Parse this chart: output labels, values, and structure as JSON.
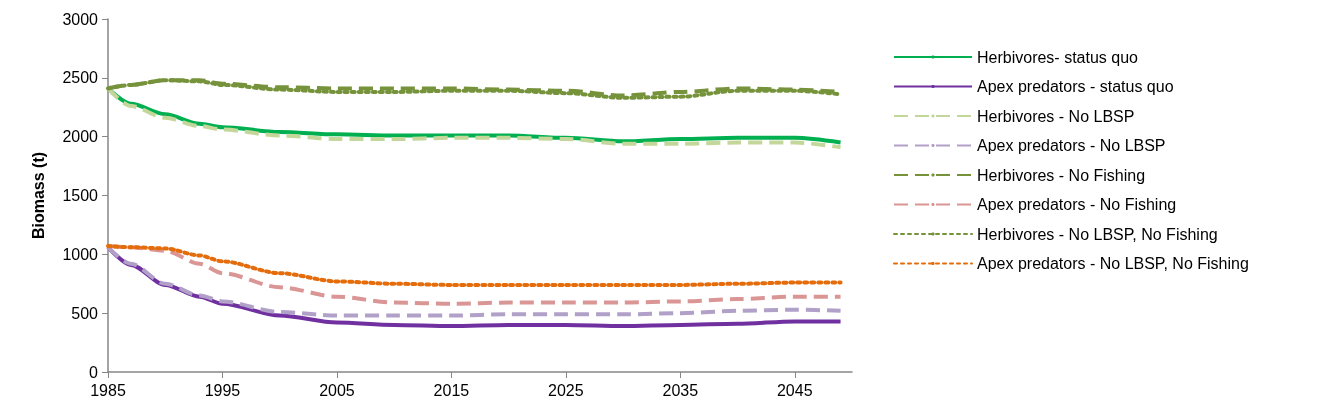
{
  "chart_data": {
    "type": "line",
    "ylabel": "Biomass (t)",
    "x": [
      1985,
      1987,
      1990,
      1993,
      1995,
      2000,
      2005,
      2010,
      2015,
      2020,
      2025,
      2030,
      2035,
      2040,
      2045,
      2049
    ],
    "xlim": [
      1985,
      2050
    ],
    "xticks": [
      1985,
      1995,
      2005,
      2015,
      2025,
      2035,
      2045
    ],
    "ylim": [
      0,
      3000
    ],
    "yticks": [
      0,
      500,
      1000,
      1500,
      2000,
      2500,
      3000
    ],
    "grid": false,
    "legend": "right",
    "marker": "none",
    "series": [
      {
        "name": "Herbivores- status quo",
        "color": "#00b050",
        "line_style": "solid",
        "values": [
          2410,
          2280,
          2190,
          2110,
          2080,
          2040,
          2020,
          2010,
          2010,
          2010,
          1990,
          1960,
          1980,
          1990,
          1990,
          1950
        ]
      },
      {
        "name": "Apex predators - status quo",
        "color": "#7030a0",
        "line_style": "solid",
        "values": [
          1060,
          910,
          740,
          640,
          580,
          480,
          420,
          400,
          390,
          400,
          400,
          390,
          400,
          410,
          430,
          430
        ]
      },
      {
        "name": "Herbivores - No LBSP",
        "color": "#c4d79b",
        "line_style": "dashed",
        "values": [
          2410,
          2260,
          2160,
          2090,
          2060,
          2010,
          1980,
          1980,
          1990,
          1990,
          1980,
          1940,
          1940,
          1950,
          1950,
          1910
        ]
      },
      {
        "name": "Apex predators - No LBSP",
        "color": "#b1a0c7",
        "line_style": "dashed",
        "values": [
          1060,
          920,
          750,
          650,
          600,
          510,
          480,
          480,
          480,
          490,
          490,
          490,
          500,
          520,
          530,
          520
        ]
      },
      {
        "name": "Herbivores - No Fishing",
        "color": "#76933c",
        "line_style": "dashed",
        "values": [
          2410,
          2440,
          2480,
          2480,
          2450,
          2420,
          2410,
          2410,
          2410,
          2400,
          2390,
          2350,
          2380,
          2410,
          2400,
          2380
        ]
      },
      {
        "name": "Apex predators - No Fishing",
        "color": "#da9694",
        "line_style": "dashed",
        "values": [
          1070,
          1060,
          1030,
          920,
          840,
          720,
          640,
          590,
          580,
          590,
          590,
          590,
          600,
          620,
          640,
          640
        ]
      },
      {
        "name": "Herbivores - No LBSP, No Fishing",
        "color": "#76933c",
        "line_style": "dotted",
        "values": [
          2410,
          2440,
          2480,
          2470,
          2440,
          2400,
          2380,
          2380,
          2390,
          2390,
          2370,
          2330,
          2340,
          2390,
          2390,
          2360
        ]
      },
      {
        "name": "Apex predators - No LBSP, No Fishing",
        "color": "#e46c0a",
        "line_style": "dotted",
        "values": [
          1070,
          1060,
          1050,
          990,
          940,
          840,
          770,
          750,
          740,
          740,
          740,
          740,
          740,
          750,
          760,
          760
        ]
      }
    ]
  }
}
